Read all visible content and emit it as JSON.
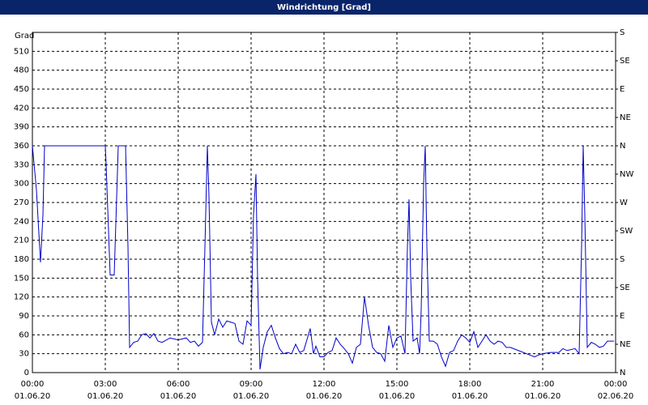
{
  "chart_data": {
    "type": "line",
    "title": "Windrichtung [Grad]",
    "y_label": "Grad",
    "x": [
      0,
      10,
      20,
      26,
      30,
      180,
      182,
      192,
      202,
      212,
      230,
      236,
      240,
      250,
      260,
      270,
      280,
      290,
      300,
      310,
      320,
      340,
      360,
      380,
      390,
      400,
      410,
      420,
      426,
      432,
      436,
      442,
      450,
      460,
      470,
      480,
      490,
      500,
      510,
      520,
      530,
      540,
      546,
      552,
      556,
      562,
      570,
      580,
      590,
      600,
      610,
      620,
      630,
      640,
      650,
      660,
      670,
      686,
      694,
      700,
      710,
      720,
      730,
      740,
      750,
      760,
      770,
      780,
      790,
      800,
      810,
      820,
      830,
      840,
      850,
      860,
      870,
      880,
      890,
      900,
      910,
      920,
      926,
      930,
      934,
      940,
      950,
      956,
      960,
      966,
      970,
      974,
      980,
      990,
      1000,
      1010,
      1020,
      1030,
      1040,
      1050,
      1060,
      1070,
      1080,
      1090,
      1100,
      1110,
      1120,
      1130,
      1140,
      1150,
      1160,
      1170,
      1180,
      1200,
      1220,
      1240,
      1250,
      1260,
      1280,
      1300,
      1310,
      1320,
      1340,
      1350,
      1356,
      1360,
      1364,
      1370,
      1380,
      1390,
      1400,
      1410,
      1420,
      1436
    ],
    "series": [
      {
        "name": "Windrichtung",
        "color": "#0000c8",
        "values": [
          360,
          290,
          175,
          250,
          360,
          360,
          330,
          155,
          155,
          360,
          360,
          200,
          40,
          48,
          50,
          60,
          62,
          55,
          62,
          50,
          48,
          55,
          52,
          55,
          48,
          50,
          42,
          48,
          200,
          360,
          280,
          80,
          60,
          85,
          72,
          82,
          80,
          78,
          50,
          45,
          82,
          75,
          250,
          315,
          150,
          5,
          40,
          65,
          75,
          55,
          38,
          30,
          32,
          30,
          45,
          32,
          35,
          70,
          30,
          42,
          25,
          25,
          32,
          35,
          55,
          45,
          38,
          30,
          15,
          40,
          45,
          120,
          75,
          40,
          32,
          30,
          18,
          75,
          40,
          55,
          58,
          30,
          200,
          275,
          150,
          50,
          55,
          30,
          100,
          300,
          360,
          200,
          50,
          50,
          45,
          25,
          10,
          32,
          35,
          50,
          60,
          55,
          48,
          65,
          40,
          50,
          60,
          50,
          45,
          50,
          48,
          40,
          40,
          35,
          30,
          25,
          28,
          30,
          32,
          32,
          38,
          35,
          38,
          30,
          200,
          360,
          250,
          40,
          48,
          45,
          40,
          42,
          50,
          50
        ]
      }
    ],
    "xlim": [
      0,
      1440
    ],
    "xticks": [
      {
        "value": 0,
        "label": "00:00"
      },
      {
        "value": 180,
        "label": "03:00"
      },
      {
        "value": 360,
        "label": "06:00"
      },
      {
        "value": 540,
        "label": "09:00"
      },
      {
        "value": 720,
        "label": "12:00"
      },
      {
        "value": 900,
        "label": "15:00"
      },
      {
        "value": 1080,
        "label": "18:00"
      },
      {
        "value": 1260,
        "label": "21:00"
      },
      {
        "value": 1440,
        "label": "00:00"
      }
    ],
    "xtick_dates": [
      "01.06.20",
      "01.06.20",
      "01.06.20",
      "01.06.20",
      "01.06.20",
      "01.06.20",
      "01.06.20",
      "01.06.20",
      "02.06.20"
    ],
    "ylim": [
      0,
      540
    ],
    "yticks": [
      0,
      30,
      60,
      90,
      120,
      150,
      180,
      210,
      240,
      270,
      300,
      330,
      360,
      390,
      420,
      450,
      480,
      510
    ],
    "y2lim": [
      0,
      540
    ],
    "y2ticks": [
      {
        "value": 0,
        "label": "N"
      },
      {
        "value": 45,
        "label": "NE"
      },
      {
        "value": 90,
        "label": "E"
      },
      {
        "value": 135,
        "label": "SE"
      },
      {
        "value": 180,
        "label": "S"
      },
      {
        "value": 225,
        "label": "SW"
      },
      {
        "value": 270,
        "label": "W"
      },
      {
        "value": 315,
        "label": "NW"
      },
      {
        "value": 360,
        "label": "N"
      },
      {
        "value": 405,
        "label": "NE"
      },
      {
        "value": 450,
        "label": "E"
      },
      {
        "value": 495,
        "label": "SE"
      },
      {
        "value": 540,
        "label": "S"
      }
    ],
    "grid": true
  }
}
